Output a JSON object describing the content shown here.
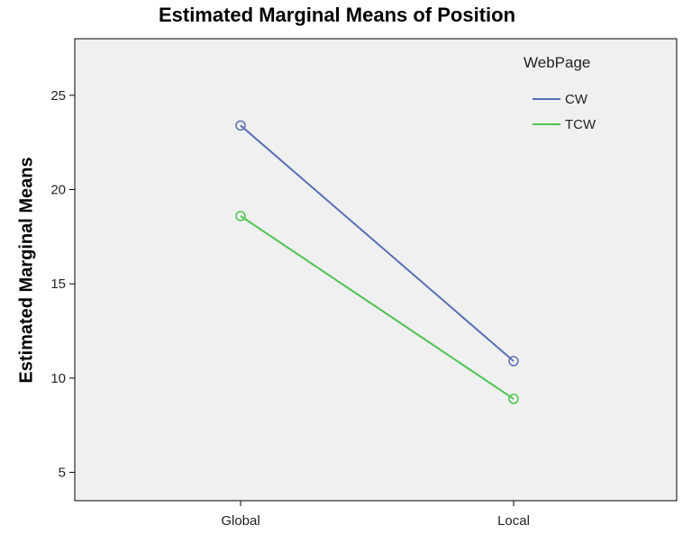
{
  "chart_data": {
    "type": "line",
    "title": "Estimated Marginal Means of Position",
    "xlabel": "",
    "ylabel": "Estimated Marginal Means",
    "categories": [
      "Global",
      "Local"
    ],
    "ylim": [
      3.5,
      28
    ],
    "yticks": [
      5,
      10,
      15,
      20,
      25
    ],
    "grid": false,
    "background": "#f0f0f0",
    "legend": {
      "title": "WebPage",
      "placement": "top-right"
    },
    "series": [
      {
        "name": "CW",
        "color": "#5a6fb5",
        "values": [
          23.4,
          10.9
        ],
        "marker": "circle-open"
      },
      {
        "name": "TCW",
        "color": "#4ec44e",
        "values": [
          18.6,
          8.9
        ],
        "marker": "circle-open"
      }
    ]
  }
}
